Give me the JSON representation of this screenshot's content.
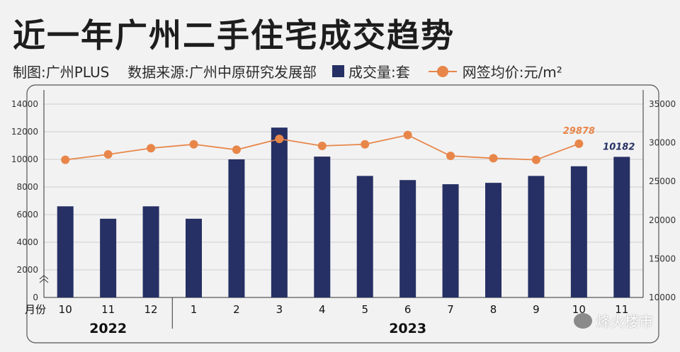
{
  "title": "近一年广州二手住宅成交趋势",
  "subtitle": {
    "credit": "制图:广州PLUS",
    "source": "数据来源:广州中原研究发展部"
  },
  "watermark": "烽火楼市",
  "colors": {
    "bar": "#263064",
    "line": "#e8864a",
    "axis": "#333333"
  },
  "chart_data": {
    "type": "bar",
    "x_axis_prefix": "月份",
    "categories": [
      "10",
      "11",
      "12",
      "1",
      "2",
      "3",
      "4",
      "5",
      "6",
      "7",
      "8",
      "9",
      "10",
      "11"
    ],
    "year_groups": [
      {
        "label": "2022",
        "count": 3
      },
      {
        "label": "2023",
        "count": 11
      }
    ],
    "series": [
      {
        "name": "成交量:套",
        "type": "bar",
        "axis": "left",
        "values": [
          6600,
          5700,
          6600,
          5700,
          10000,
          12300,
          10200,
          8800,
          8500,
          8200,
          8300,
          8800,
          9500,
          10182
        ],
        "labeled_value": "10182"
      },
      {
        "name": "网签均价:元/m²",
        "type": "line",
        "axis": "right",
        "values": [
          27800,
          28500,
          29300,
          29800,
          29100,
          30500,
          29600,
          29800,
          31000,
          28300,
          28000,
          27800,
          29878,
          null
        ],
        "labeled_value": "29878"
      }
    ],
    "y_left": {
      "ticks": [
        "0",
        "2000",
        "4000",
        "6000",
        "8000",
        "10000",
        "12000",
        "14000"
      ],
      "ylim": [
        0,
        14000
      ],
      "axis_break": true
    },
    "y_right": {
      "ticks": [
        "10000",
        "15000",
        "20000",
        "25000",
        "30000",
        "35000"
      ],
      "ylim": [
        10000,
        35000
      ]
    },
    "grid": true,
    "legend_position": "top"
  }
}
